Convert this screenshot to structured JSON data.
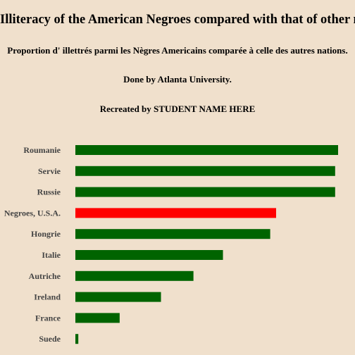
{
  "chart_data": {
    "type": "bar",
    "orientation": "horizontal",
    "title": "Illiteracy of the American Negroes compared with that of other nations.",
    "subtitles": [
      "Proportion d' illettrés parmi les Nègres Americains comparée à celle des autres nations.",
      "Done by Atlanta University.",
      "Recreated by STUDENT NAME HERE"
    ],
    "categories": [
      "Roumanie",
      "Servie",
      "Russie",
      "Negroes, U.S.A.",
      "Hongrie",
      "Italie",
      "Autriche",
      "Ireland",
      "France",
      "Suede"
    ],
    "values": [
      89,
      88,
      88,
      68,
      66,
      50,
      40,
      29,
      15,
      1
    ],
    "highlight_category": "Negroes, U.S.A.",
    "colors": {
      "bar": "#006400",
      "highlight": "#ff0000",
      "background": "#f0e0cc"
    },
    "xlim": [
      0,
      89
    ],
    "grid": false,
    "legend": "none"
  }
}
